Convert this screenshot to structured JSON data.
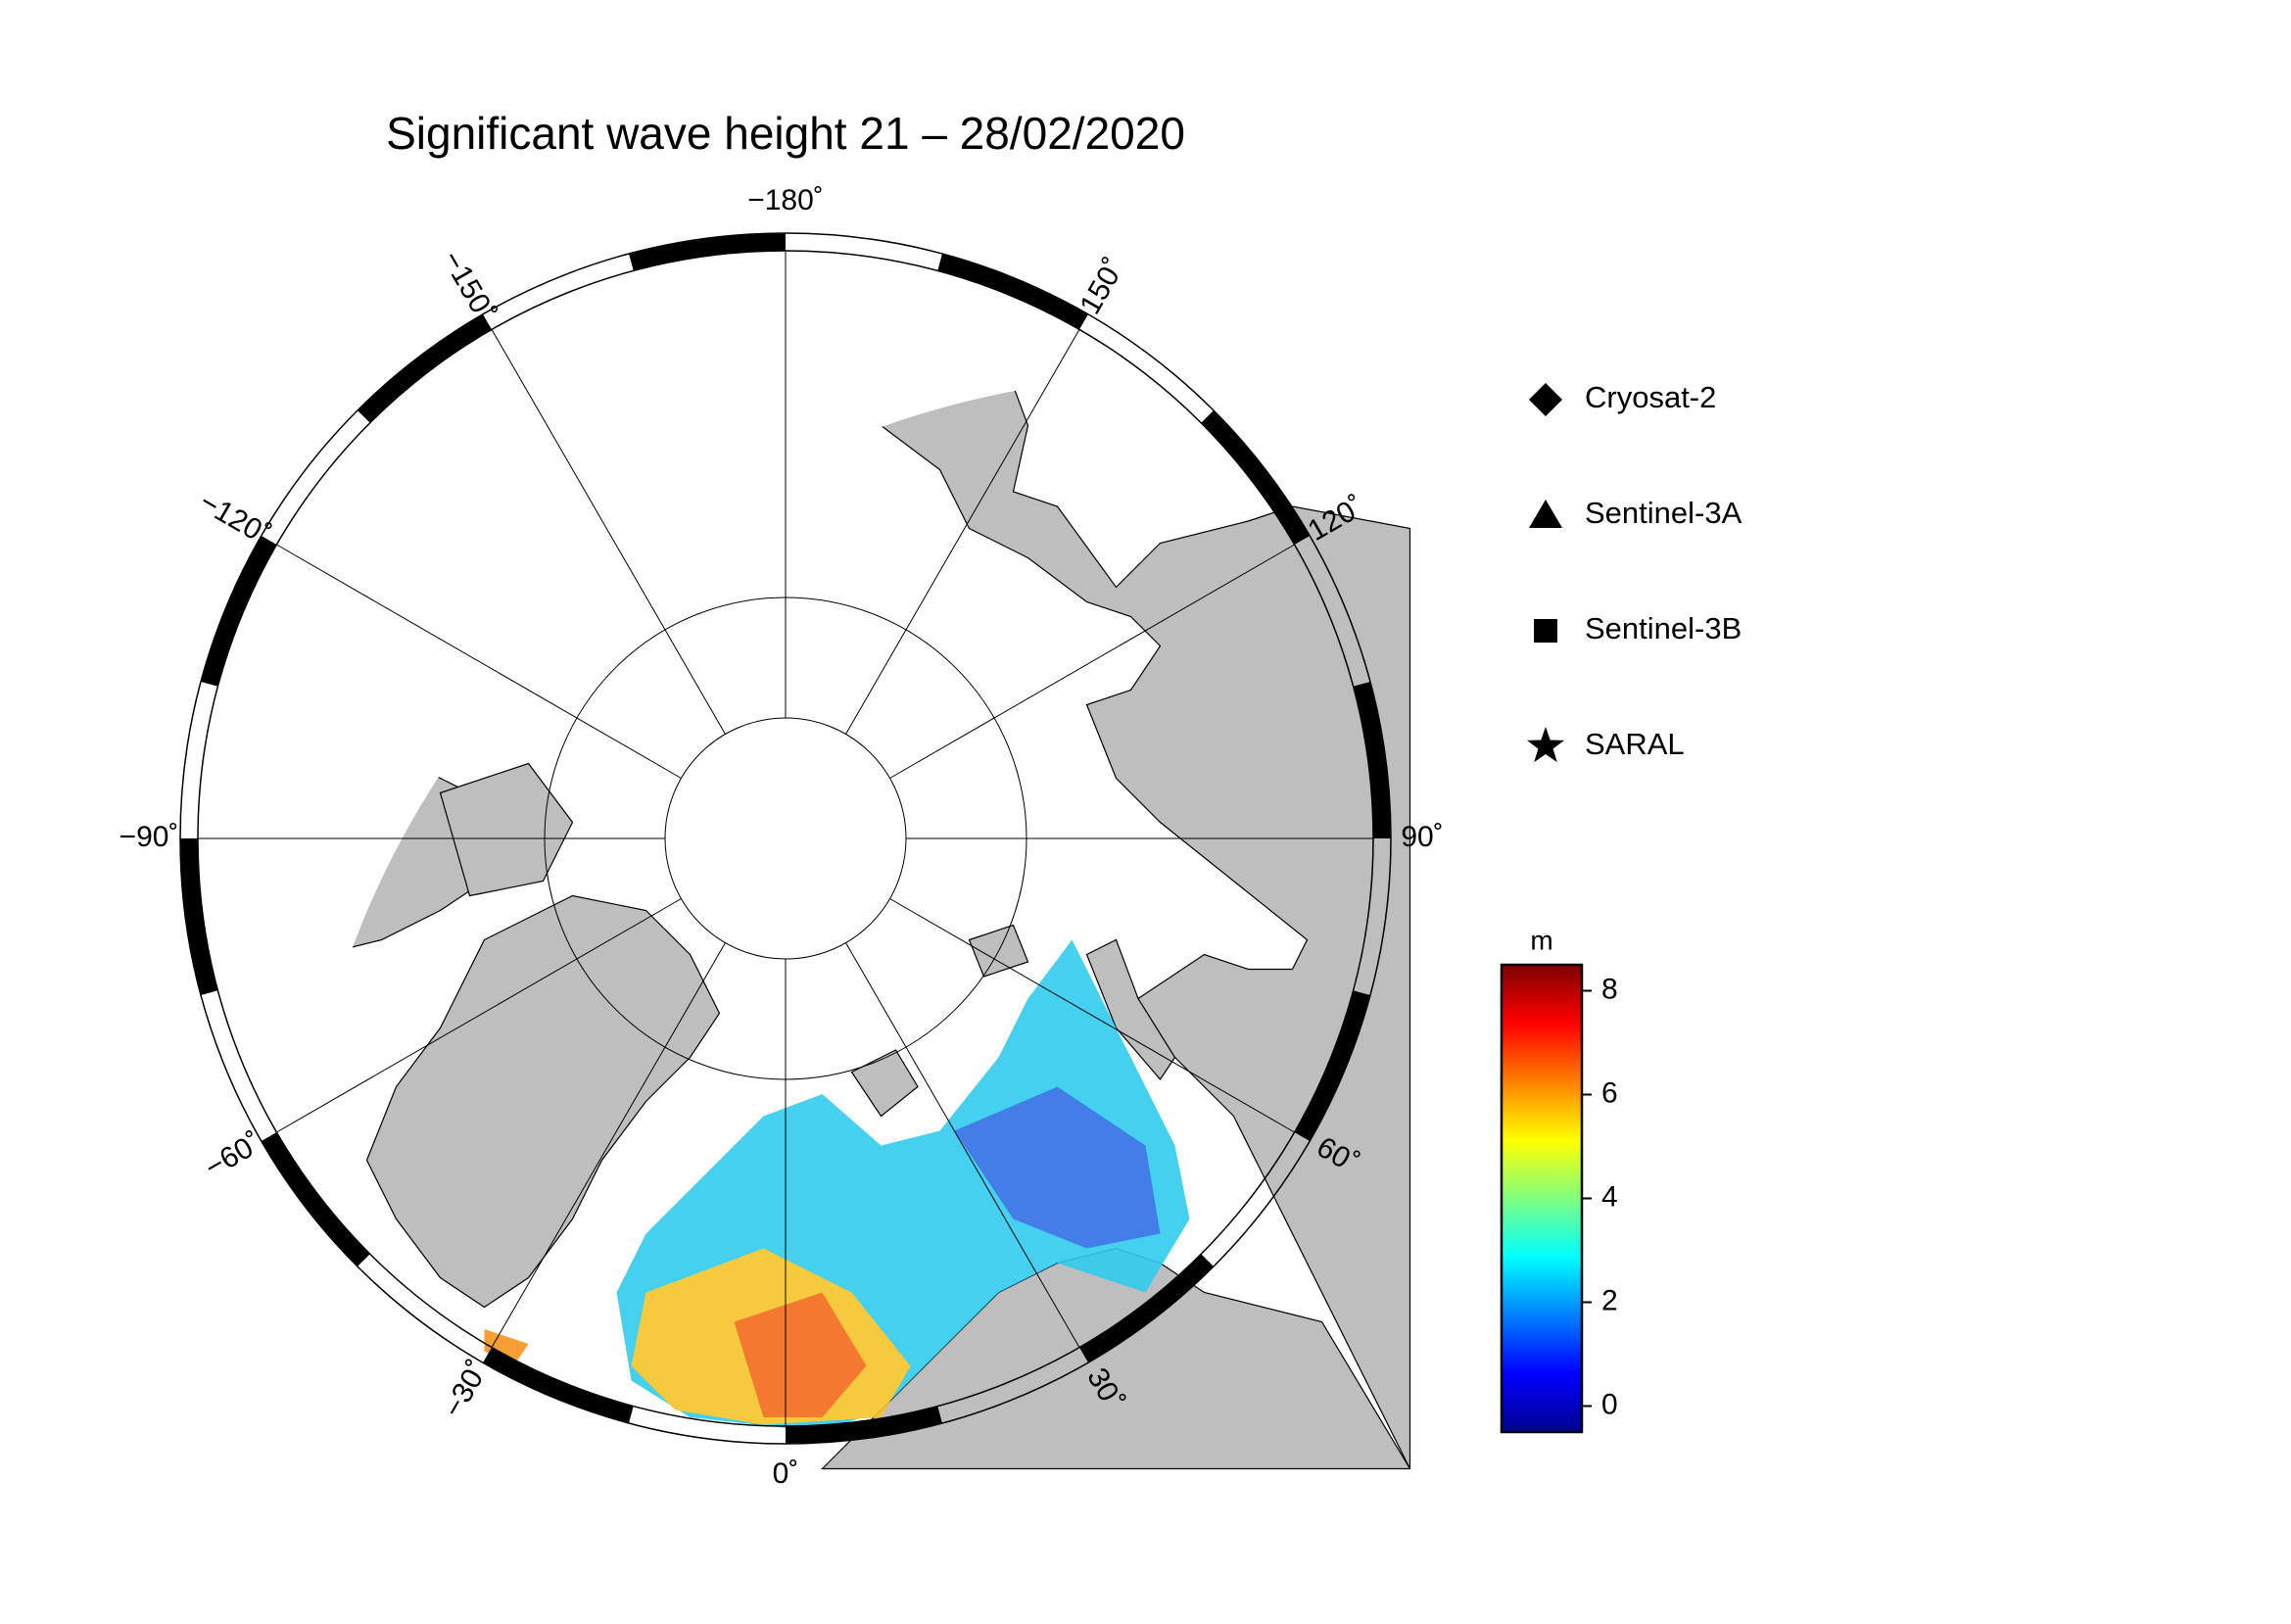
{
  "title": "Significant wave height 21 – 28/02/2020",
  "map": {
    "projection": "north polar stereographic",
    "meridians": [
      {
        "value": -180,
        "label": "−180˚"
      },
      {
        "value": -150,
        "label": "−150˚"
      },
      {
        "value": -120,
        "label": "−120˚"
      },
      {
        "value": -90,
        "label": "−90˚"
      },
      {
        "value": -60,
        "label": "−60˚"
      },
      {
        "value": -30,
        "label": "−30˚"
      },
      {
        "value": 0,
        "label": "0˚"
      },
      {
        "value": 30,
        "label": "30˚"
      },
      {
        "value": 60,
        "label": "60˚"
      },
      {
        "value": 90,
        "label": "90˚"
      },
      {
        "value": 120,
        "label": "120˚"
      },
      {
        "value": 150,
        "label": "150˚"
      }
    ]
  },
  "legend": {
    "items": [
      {
        "label": "Cryosat-2",
        "marker": "diamond"
      },
      {
        "label": "Sentinel-3A",
        "marker": "triangle"
      },
      {
        "label": "Sentinel-3B",
        "marker": "square"
      },
      {
        "label": "SARAL",
        "marker": "star"
      }
    ]
  },
  "colorbar": {
    "unit": "m",
    "lim": [
      -0.5,
      8.5
    ],
    "ticks": [
      0,
      2,
      4,
      6,
      8
    ],
    "colors": [
      "#00008f",
      "#0000ff",
      "#0080ff",
      "#00ffff",
      "#80ff80",
      "#ffff00",
      "#ff8000",
      "#ff0000",
      "#800000"
    ]
  }
}
